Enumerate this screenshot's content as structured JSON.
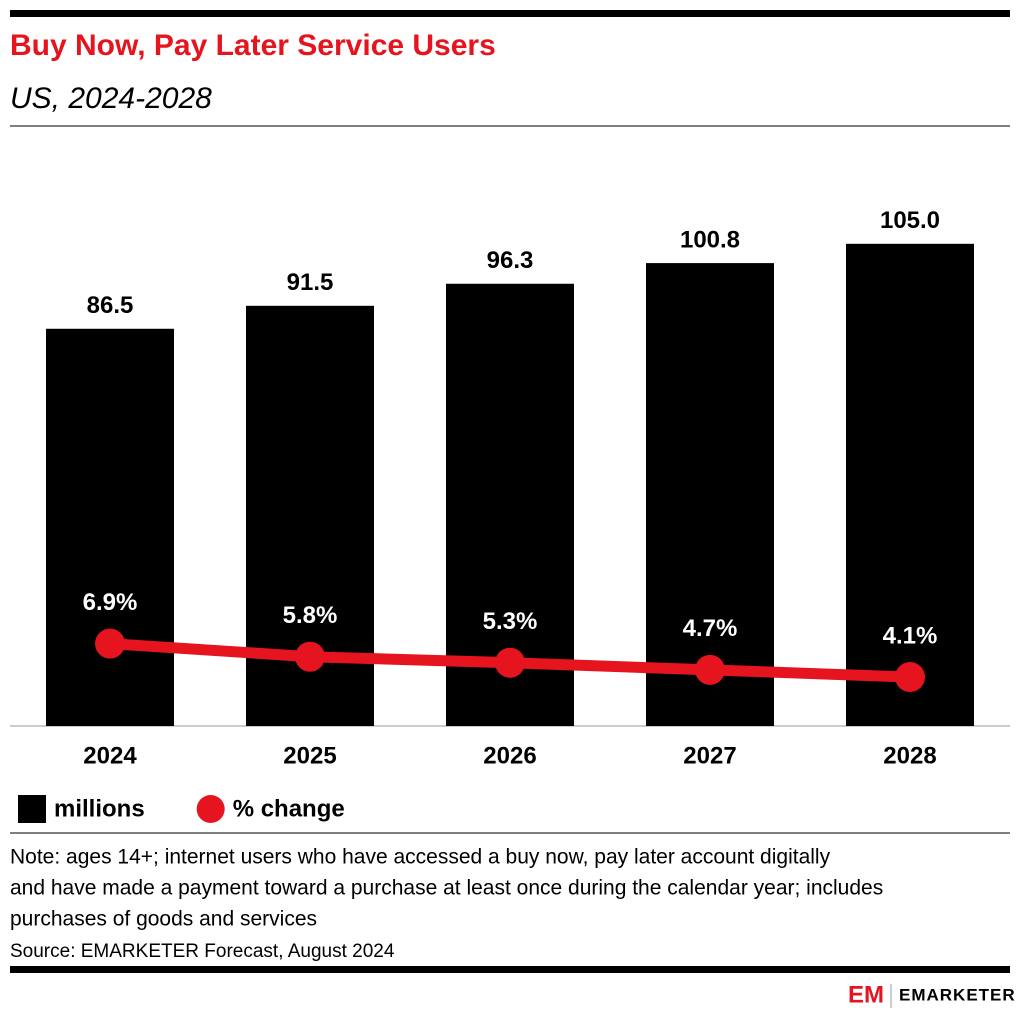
{
  "chart_data": {
    "type": "bar",
    "title": "Buy Now, Pay Later Service Users",
    "subtitle": "US, 2024-2028",
    "categories": [
      "2024",
      "2025",
      "2026",
      "2027",
      "2028"
    ],
    "series": [
      {
        "name": "millions",
        "type": "bar",
        "color": "#000000",
        "values": [
          86.5,
          91.5,
          96.3,
          100.8,
          105.0
        ],
        "value_labels": [
          "86.5",
          "91.5",
          "96.3",
          "100.8",
          "105.0"
        ]
      },
      {
        "name": "% change",
        "type": "line",
        "axis": "y2",
        "color": "#e5141f",
        "values": [
          6.9,
          5.8,
          5.3,
          4.7,
          4.1
        ],
        "value_labels": [
          "6.9%",
          "5.8%",
          "5.3%",
          "4.7%",
          "4.1%"
        ]
      }
    ],
    "ylim": [
      0,
      130
    ],
    "y2lim": [
      0,
      50
    ],
    "note": [
      "Note: ages 14+; internet users who have accessed a buy now, pay later account digitally",
      "and have made a payment toward a purchase at least once during the calendar year; includes",
      "purchases of goods and services"
    ],
    "source": "Source: EMARKETER Forecast, August 2024",
    "logo": {
      "mark": "EM",
      "name": "EMARKETER"
    }
  }
}
